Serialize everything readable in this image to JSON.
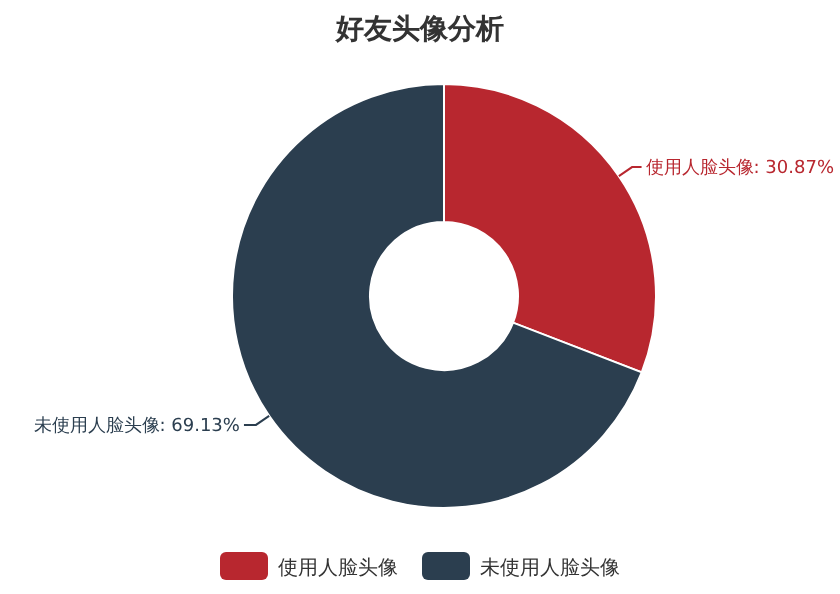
{
  "chart_data": {
    "type": "donut",
    "title": "好友头像分析",
    "categories": [
      "使用人脸头像",
      "未使用人脸头像"
    ],
    "values": [
      30.87,
      69.13
    ],
    "colors": [
      "#b8272f",
      "#2b3e4f"
    ],
    "value_labels": [
      "使用人脸头像: 30.87%",
      "未使用人脸头像: 69.13%"
    ],
    "legend": "bottom"
  }
}
